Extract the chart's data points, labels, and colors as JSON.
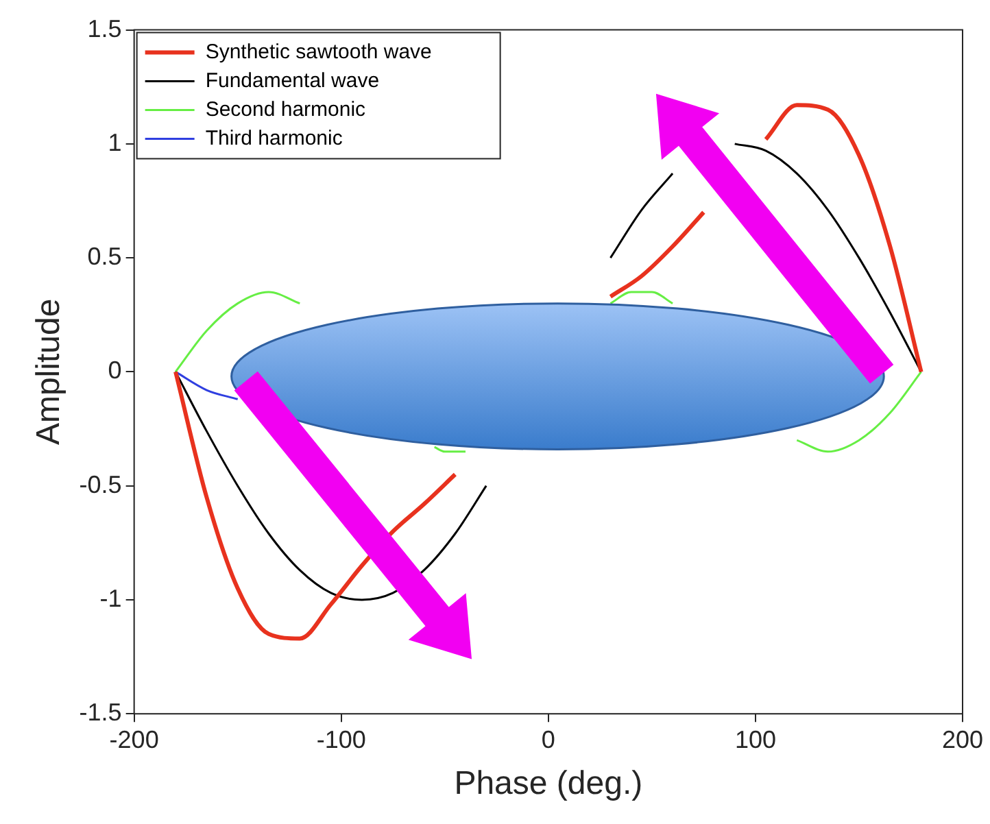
{
  "chart_data": {
    "type": "line",
    "xlabel": "Phase (deg.)",
    "ylabel": "Amplitude",
    "xlim": [
      -200,
      200
    ],
    "xticks": [
      -200,
      -100,
      0,
      100,
      200
    ],
    "ylim": [
      -1.5,
      1.5
    ],
    "yticks": [
      -1.5,
      -1,
      -0.5,
      0,
      0.5,
      1,
      1.5
    ],
    "grid": false,
    "legend": "top left",
    "marker": "none",
    "line_style": "solid",
    "series": [
      {
        "name": "Synthetic sawtooth wave",
        "color": "#e8321e",
        "x": [
          -180,
          -165,
          -150,
          -135,
          -120,
          -105,
          -90,
          -75,
          -60,
          -45,
          -30,
          -15,
          0,
          15,
          30,
          45,
          60,
          75,
          90,
          105,
          120,
          135,
          150,
          165,
          180
        ],
        "values": [
          0,
          -0.55,
          -0.95,
          -1.15,
          -1.17,
          -1.02,
          -0.85,
          -0.7,
          -0.58,
          -0.45,
          null,
          null,
          null,
          null,
          0.33,
          0.42,
          0.55,
          0.7,
          null,
          1.02,
          1.17,
          1.15,
          0.95,
          0.55,
          0
        ]
      },
      {
        "name": "Fundamental wave",
        "color": "#000000",
        "x": [
          -180,
          -165,
          -150,
          -135,
          -120,
          -105,
          -90,
          -75,
          -60,
          -45,
          -30,
          -15,
          0,
          15,
          30,
          45,
          60,
          75,
          90,
          105,
          120,
          135,
          150,
          165,
          180
        ],
        "values": [
          0,
          -0.26,
          -0.5,
          -0.71,
          -0.87,
          -0.97,
          -1,
          -0.97,
          -0.87,
          -0.71,
          -0.5,
          null,
          null,
          null,
          0.5,
          0.71,
          0.87,
          null,
          1,
          0.97,
          0.87,
          0.71,
          0.5,
          0.26,
          0
        ]
      },
      {
        "name": "Second harmonic",
        "color": "#66ee44",
        "x": [
          -180,
          -165,
          -150,
          -135,
          -120,
          -105,
          -55,
          -50,
          -45,
          -40,
          -35,
          30,
          40,
          45,
          50,
          60,
          75,
          120,
          135,
          150,
          165,
          180
        ],
        "values": [
          0,
          0.18,
          0.3,
          0.35,
          0.3,
          null,
          -0.33,
          -0.35,
          -0.35,
          -0.35,
          null,
          0.3,
          0.35,
          0.35,
          0.35,
          0.3,
          null,
          -0.3,
          -0.35,
          -0.3,
          -0.18,
          0
        ]
      },
      {
        "name": "Third harmonic",
        "color": "#2f3fe0",
        "x": [
          -180,
          -165,
          -150
        ],
        "values": [
          0,
          -0.08,
          -0.12
        ]
      }
    ]
  }
}
